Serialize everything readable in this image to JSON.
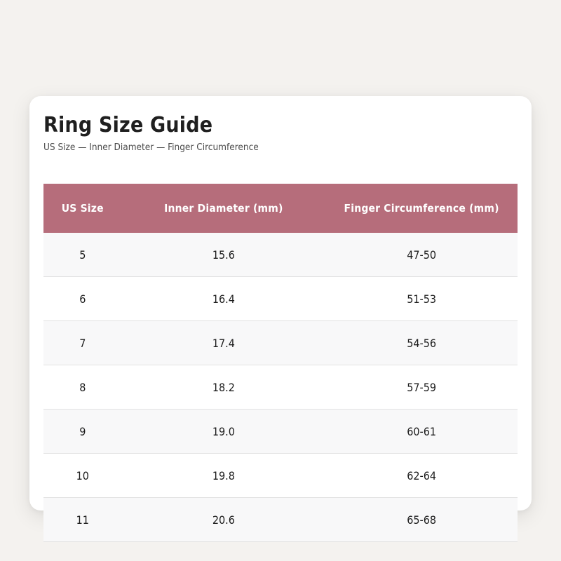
{
  "page": {
    "background_color": "#f4f2ef"
  },
  "card": {
    "title": "Ring Size Guide",
    "subtitle": "US Size — Inner Diameter — Finger Circumference",
    "background_color": "#ffffff"
  },
  "table": {
    "header_bg_color": "#b66d7b",
    "header_text_color": "#ffffff",
    "stripe_color": "#f8f8f9",
    "columns": [
      "US Size",
      "Inner Diameter (mm)",
      "Finger Circumference (mm)"
    ],
    "rows": [
      [
        "5",
        "15.6",
        "47-50"
      ],
      [
        "6",
        "16.4",
        "51-53"
      ],
      [
        "7",
        "17.4",
        "54-56"
      ],
      [
        "8",
        "18.2",
        "57-59"
      ],
      [
        "9",
        "19.0",
        "60-61"
      ],
      [
        "10",
        "19.8",
        "62-64"
      ],
      [
        "11",
        "20.6",
        "65-68"
      ]
    ]
  }
}
